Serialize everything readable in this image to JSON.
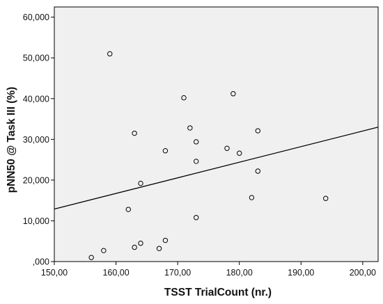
{
  "chart_data": {
    "type": "scatter",
    "xlabel": "TSST TrialCount (nr.)",
    "ylabel": "pNN50 @ Task III (%)",
    "xlim": [
      150,
      202.5
    ],
    "ylim": [
      0,
      62500
    ],
    "x_ticks": [
      150,
      160,
      170,
      180,
      190,
      200
    ],
    "x_tick_labels": [
      "150,00",
      "160,00",
      "170,00",
      "180,00",
      "190,00",
      "200,00"
    ],
    "y_ticks": [
      0,
      10000,
      20000,
      30000,
      40000,
      50000,
      60000
    ],
    "y_tick_labels": [
      ",000",
      "10,000",
      "20,000",
      "30,000",
      "40,000",
      "50,000",
      "60,000"
    ],
    "grid": false,
    "plot_background": "#f0f0f0",
    "marker": "open-circle",
    "points": [
      {
        "x": 156,
        "y": 1000
      },
      {
        "x": 158,
        "y": 2700
      },
      {
        "x": 159,
        "y": 51000
      },
      {
        "x": 162,
        "y": 12800
      },
      {
        "x": 163,
        "y": 31500
      },
      {
        "x": 163,
        "y": 3500
      },
      {
        "x": 164,
        "y": 19200
      },
      {
        "x": 164,
        "y": 4500
      },
      {
        "x": 167,
        "y": 3200
      },
      {
        "x": 168,
        "y": 27200
      },
      {
        "x": 168,
        "y": 5200
      },
      {
        "x": 171,
        "y": 40200
      },
      {
        "x": 172,
        "y": 32800
      },
      {
        "x": 173,
        "y": 29400
      },
      {
        "x": 173,
        "y": 24600
      },
      {
        "x": 173,
        "y": 10800
      },
      {
        "x": 178,
        "y": 27800
      },
      {
        "x": 179,
        "y": 41200
      },
      {
        "x": 180,
        "y": 26600
      },
      {
        "x": 182,
        "y": 15700
      },
      {
        "x": 183,
        "y": 32100
      },
      {
        "x": 183,
        "y": 22200
      },
      {
        "x": 194,
        "y": 15500
      }
    ],
    "fit_line": {
      "x": [
        150,
        202.5
      ],
      "y": [
        12900,
        33000
      ]
    }
  }
}
